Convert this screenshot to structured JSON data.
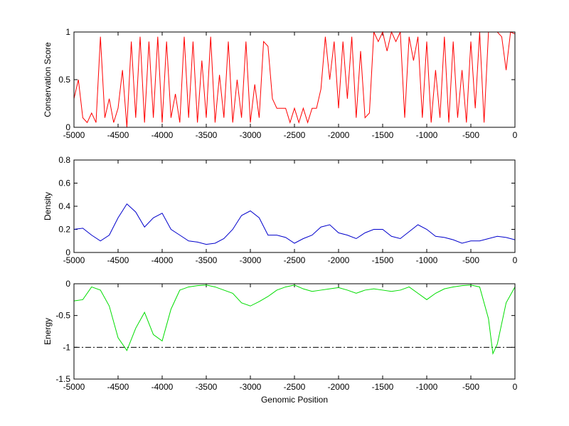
{
  "chart_data": [
    {
      "type": "line",
      "ylabel": "Conservation Score",
      "color": "#ff0000",
      "x": [
        -5000,
        -4950,
        -4900,
        -4850,
        -4800,
        -4750,
        -4700,
        -4650,
        -4600,
        -4550,
        -4500,
        -4450,
        -4400,
        -4350,
        -4300,
        -4250,
        -4200,
        -4150,
        -4100,
        -4050,
        -4000,
        -3950,
        -3900,
        -3850,
        -3800,
        -3750,
        -3700,
        -3650,
        -3600,
        -3550,
        -3500,
        -3450,
        -3400,
        -3350,
        -3300,
        -3250,
        -3200,
        -3150,
        -3100,
        -3050,
        -3000,
        -2950,
        -2900,
        -2850,
        -2800,
        -2750,
        -2700,
        -2650,
        -2600,
        -2550,
        -2500,
        -2450,
        -2400,
        -2350,
        -2300,
        -2250,
        -2200,
        -2150,
        -2100,
        -2050,
        -2000,
        -1950,
        -1900,
        -1850,
        -1800,
        -1750,
        -1700,
        -1650,
        -1600,
        -1550,
        -1500,
        -1450,
        -1400,
        -1350,
        -1300,
        -1250,
        -1200,
        -1150,
        -1100,
        -1050,
        -1000,
        -950,
        -900,
        -850,
        -800,
        -750,
        -700,
        -650,
        -600,
        -550,
        -500,
        -450,
        -400,
        -350,
        -300,
        -250,
        -200,
        -150,
        -100,
        -50,
        0
      ],
      "values": [
        0.3,
        0.5,
        0.1,
        0.05,
        0.15,
        0.05,
        0.95,
        0.1,
        0.3,
        0.05,
        0.2,
        0.6,
        0.0,
        0.9,
        0.1,
        0.95,
        0.05,
        0.9,
        0.1,
        0.95,
        0.05,
        0.9,
        0.1,
        0.35,
        0.05,
        0.95,
        0.1,
        0.9,
        0.05,
        0.7,
        0.1,
        0.95,
        0.05,
        0.55,
        0.1,
        0.9,
        0.05,
        0.5,
        0.1,
        0.9,
        0.05,
        0.45,
        0.1,
        0.9,
        0.85,
        0.3,
        0.2,
        0.2,
        0.2,
        0.05,
        0.2,
        0.05,
        0.2,
        0.05,
        0.2,
        0.2,
        0.4,
        0.95,
        0.5,
        0.9,
        0.2,
        0.9,
        0.3,
        0.95,
        0.1,
        0.8,
        0.1,
        0.15,
        1,
        0.9,
        1,
        0.8,
        1,
        0.9,
        1,
        0.1,
        0.95,
        0.7,
        0.95,
        0.1,
        0.9,
        0.05,
        0.6,
        0.1,
        0.95,
        0.05,
        0.9,
        0.1,
        0.6,
        0.05,
        0.9,
        0.2,
        1,
        0.05,
        1,
        1,
        1,
        0.95,
        0.6,
        1,
        0.98
      ],
      "xlim": [
        -5000,
        0
      ],
      "xticks": [
        -5000,
        -4500,
        -4000,
        -3500,
        -3000,
        -2500,
        -2000,
        -1500,
        -1000,
        -500,
        0
      ],
      "ylim": [
        0,
        1
      ],
      "yticks": [
        0,
        0.5,
        1
      ]
    },
    {
      "type": "line",
      "ylabel": "Density",
      "color": "#0000cc",
      "x": [
        -5000,
        -4900,
        -4800,
        -4700,
        -4600,
        -4500,
        -4400,
        -4300,
        -4200,
        -4100,
        -4000,
        -3900,
        -3800,
        -3700,
        -3600,
        -3500,
        -3400,
        -3300,
        -3200,
        -3100,
        -3000,
        -2900,
        -2800,
        -2700,
        -2600,
        -2500,
        -2400,
        -2300,
        -2200,
        -2100,
        -2000,
        -1900,
        -1800,
        -1700,
        -1600,
        -1500,
        -1400,
        -1300,
        -1200,
        -1100,
        -1000,
        -900,
        -800,
        -700,
        -600,
        -500,
        -400,
        -300,
        -200,
        -100,
        0
      ],
      "values": [
        0.2,
        0.21,
        0.15,
        0.1,
        0.15,
        0.3,
        0.42,
        0.35,
        0.22,
        0.3,
        0.34,
        0.2,
        0.15,
        0.1,
        0.09,
        0.07,
        0.08,
        0.12,
        0.2,
        0.32,
        0.36,
        0.3,
        0.15,
        0.15,
        0.13,
        0.08,
        0.12,
        0.15,
        0.22,
        0.24,
        0.17,
        0.15,
        0.12,
        0.17,
        0.2,
        0.2,
        0.14,
        0.12,
        0.18,
        0.24,
        0.2,
        0.14,
        0.13,
        0.11,
        0.08,
        0.1,
        0.1,
        0.12,
        0.14,
        0.13,
        0.11
      ],
      "xlim": [
        -5000,
        0
      ],
      "xticks": [
        -5000,
        -4500,
        -4000,
        -3500,
        -3000,
        -2500,
        -2000,
        -1500,
        -1000,
        -500,
        0
      ],
      "ylim": [
        0,
        0.8
      ],
      "yticks": [
        0,
        0.2,
        0.4,
        0.6,
        0.8
      ]
    },
    {
      "type": "line",
      "ylabel": "Energy",
      "xlabel": "Genomic Position",
      "color": "#00dd00",
      "x": [
        -5000,
        -4900,
        -4800,
        -4700,
        -4600,
        -4500,
        -4400,
        -4300,
        -4200,
        -4100,
        -4000,
        -3900,
        -3800,
        -3700,
        -3600,
        -3500,
        -3400,
        -3300,
        -3200,
        -3100,
        -3000,
        -2900,
        -2800,
        -2700,
        -2600,
        -2500,
        -2400,
        -2300,
        -2200,
        -2100,
        -2000,
        -1900,
        -1800,
        -1700,
        -1600,
        -1500,
        -1400,
        -1300,
        -1200,
        -1100,
        -1000,
        -900,
        -800,
        -700,
        -600,
        -500,
        -400,
        -300,
        -250,
        -200,
        -100,
        0
      ],
      "values": [
        -0.27,
        -0.25,
        -0.05,
        -0.1,
        -0.35,
        -0.85,
        -1.05,
        -0.7,
        -0.45,
        -0.8,
        -0.9,
        -0.4,
        -0.1,
        -0.05,
        -0.03,
        -0.02,
        -0.05,
        -0.1,
        -0.15,
        -0.3,
        -0.35,
        -0.28,
        -0.2,
        -0.1,
        -0.05,
        -0.02,
        -0.08,
        -0.12,
        -0.1,
        -0.08,
        -0.06,
        -0.1,
        -0.15,
        -0.1,
        -0.08,
        -0.1,
        -0.12,
        -0.1,
        -0.05,
        -0.15,
        -0.25,
        -0.15,
        -0.08,
        -0.05,
        -0.03,
        -0.02,
        -0.05,
        -0.55,
        -1.1,
        -0.95,
        -0.3,
        -0.05
      ],
      "reference_line": -1,
      "xlim": [
        -5000,
        0
      ],
      "xticks": [
        -5000,
        -4500,
        -4000,
        -3500,
        -3000,
        -2500,
        -2000,
        -1500,
        -1000,
        -500,
        0
      ],
      "ylim": [
        -1.5,
        0
      ],
      "yticks": [
        -1.5,
        -1,
        -0.5,
        0
      ]
    }
  ]
}
